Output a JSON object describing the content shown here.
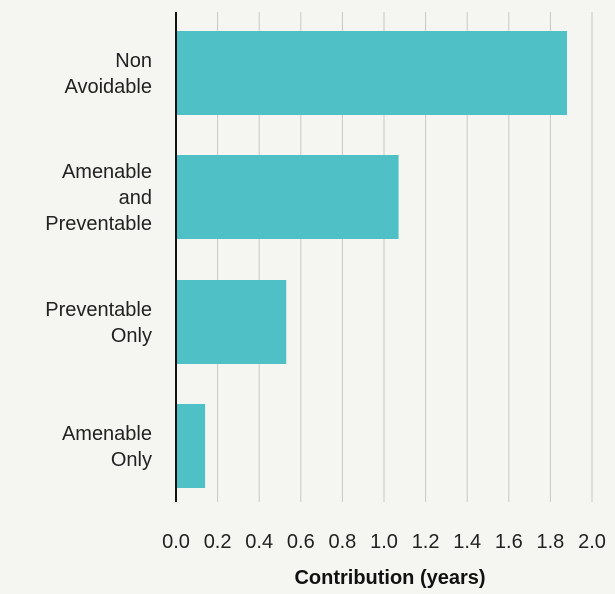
{
  "chart_data": {
    "type": "bar",
    "orientation": "horizontal",
    "categories": [
      [
        "Non",
        "Avoidable"
      ],
      [
        "Amenable",
        "and",
        "Preventable"
      ],
      [
        "Preventable",
        "Only"
      ],
      [
        "Amenable",
        "Only"
      ]
    ],
    "values": [
      1.88,
      1.07,
      0.53,
      0.14
    ],
    "xlim": [
      0,
      2.0
    ],
    "xticks": [
      "0.0",
      "0.2",
      "0.4",
      "0.6",
      "0.8",
      "1.0",
      "1.2",
      "1.4",
      "1.6",
      "1.8",
      "2.0"
    ],
    "xlabel": "Contribution (years)",
    "ylabel": "",
    "title": "",
    "grid": "vertical",
    "bar_color": "#4fc0c6",
    "grid_color": "#c8c8c8",
    "axis_color": "#111111"
  }
}
